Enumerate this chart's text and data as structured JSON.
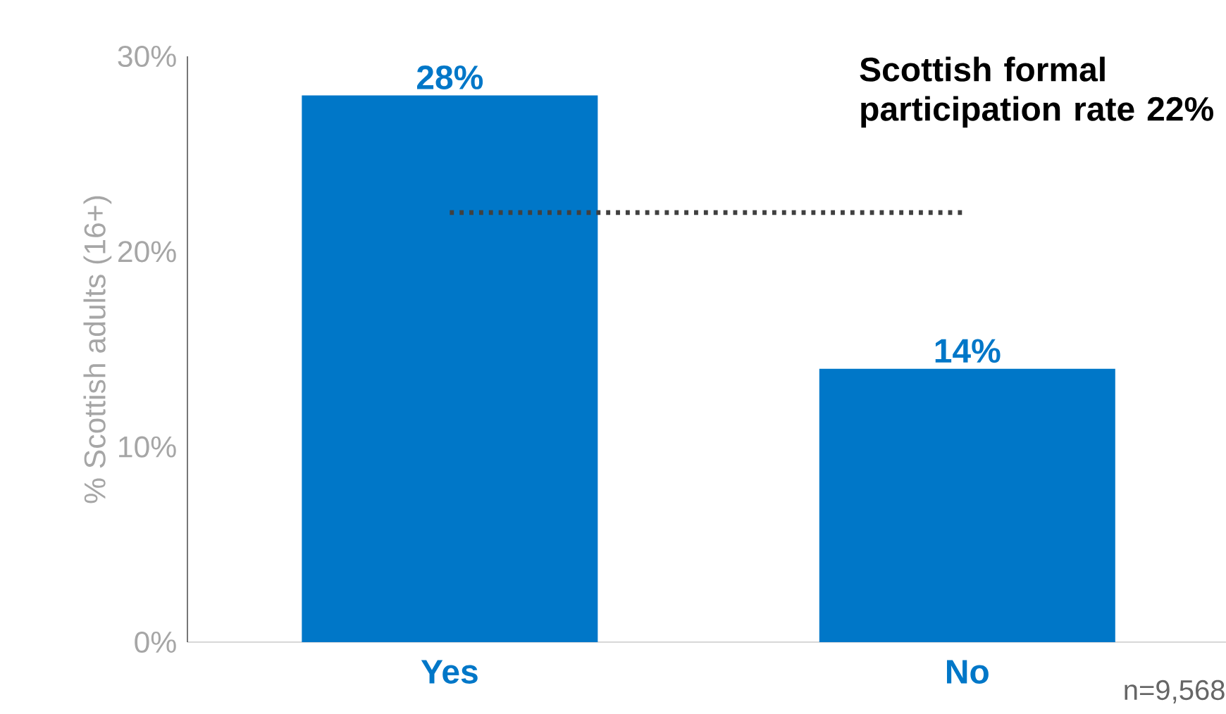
{
  "chart_data": {
    "type": "bar",
    "categories": [
      "Yes",
      "No"
    ],
    "values": [
      28,
      14
    ],
    "value_labels": [
      "28%",
      "14%"
    ],
    "color": "#0077c8",
    "ylabel": "% Scottish adults (16+)",
    "ylim": [
      0,
      30
    ],
    "yticks": [
      {
        "value": 0,
        "label": "0%"
      },
      {
        "value": 10,
        "label": "10%"
      },
      {
        "value": 20,
        "label": "20%"
      },
      {
        "value": 30,
        "label": "30%"
      }
    ],
    "ref_lines": [
      {
        "axis": "y",
        "value": 22,
        "label": "Scottish formal participation rate 22%",
        "color": "#404040",
        "line_style": "dotted"
      }
    ],
    "annotations": [
      "n=9,568"
    ]
  }
}
